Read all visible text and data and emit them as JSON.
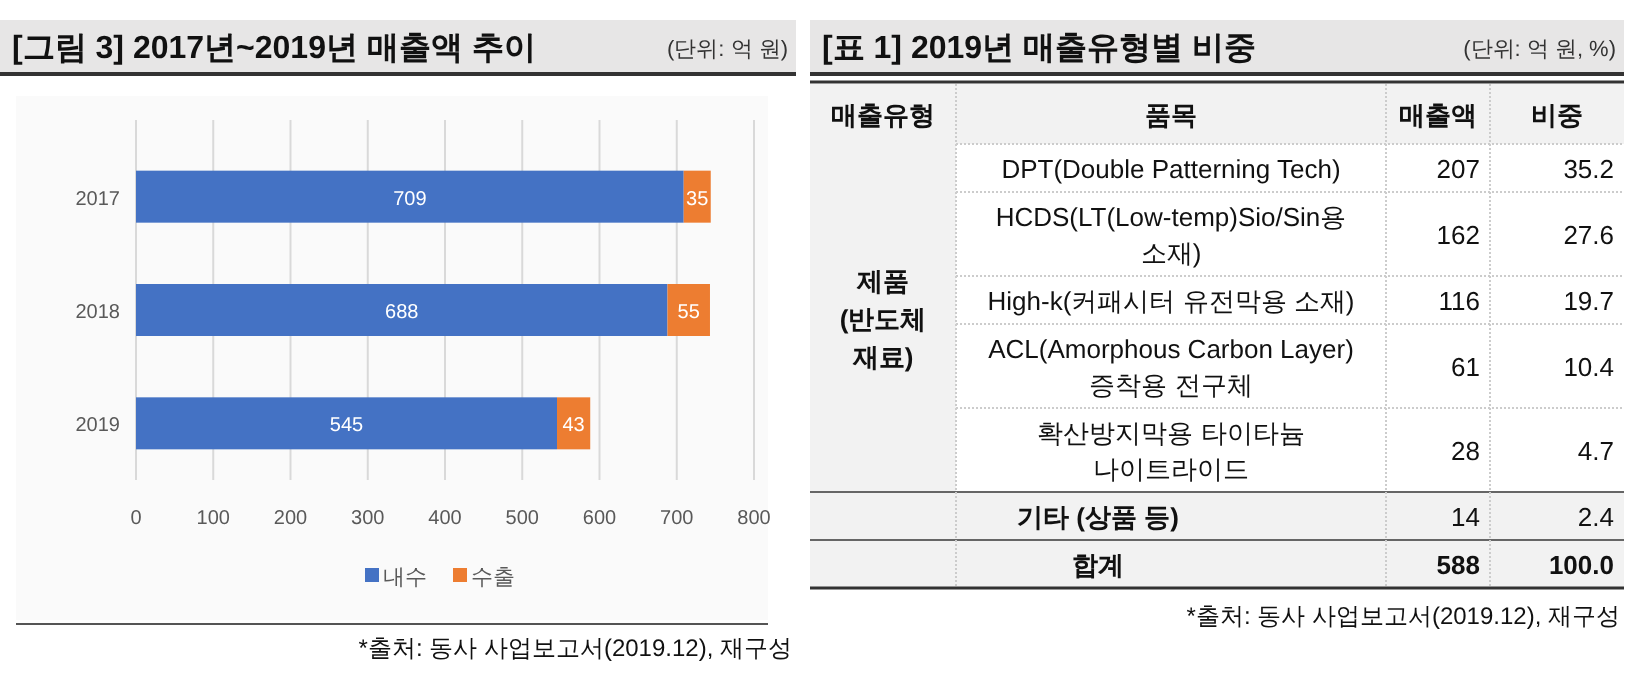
{
  "chart_data": [
    {
      "type": "bar",
      "title": "[그림 3] 2017년~2019년 매출액 추이",
      "subtitle": "(단위: 억 원)",
      "orientation": "horizontal",
      "stacked": true,
      "categories": [
        "2017",
        "2018",
        "2019"
      ],
      "series": [
        {
          "name": "내수",
          "color": "#4472c4",
          "values": [
            709,
            688,
            545
          ]
        },
        {
          "name": "수출",
          "color": "#ed7d31",
          "values": [
            35,
            55,
            43
          ]
        }
      ],
      "xlim": [
        0,
        800
      ],
      "xticks": [
        0,
        100,
        200,
        300,
        400,
        500,
        600,
        700,
        800
      ],
      "grid": "x",
      "legend": "bottom",
      "data_labels": true,
      "annotations": [
        "*출처: 동사 사업보고서(2019.12), 재구성"
      ]
    },
    {
      "type": "other",
      "title": "[표 1] 2019년 매출유형별 비중",
      "subtitle": "(단위: 억 원, %)",
      "categories": [
        "매출유형",
        "품목",
        "매출액",
        "비중"
      ],
      "y_categories": [
        "DPT(Double Patterning Tech)",
        "HCDS(LT(Low-temp)Sio/Sin용\n소재)",
        "High-k(커패시터 유전막용 소재)",
        "ACL(Amorphous Carbon Layer)\n증착용 전구체",
        "확산방지막용 타이타늄\n나이트라이드",
        "기타 (상품 등)",
        "합계"
      ],
      "cell_labels": [
        [
          "207",
          "35.2"
        ],
        [
          "162",
          "27.6"
        ],
        [
          "116",
          "19.7"
        ],
        [
          "61",
          "10.4"
        ],
        [
          "28",
          "4.7"
        ],
        [
          "14",
          "2.4"
        ],
        [
          "588",
          "100.0"
        ]
      ],
      "annotations": [
        "제품\n(반도체\n재료)",
        "*출처: 동사 사업보고서(2019.12), 재구성"
      ]
    }
  ]
}
